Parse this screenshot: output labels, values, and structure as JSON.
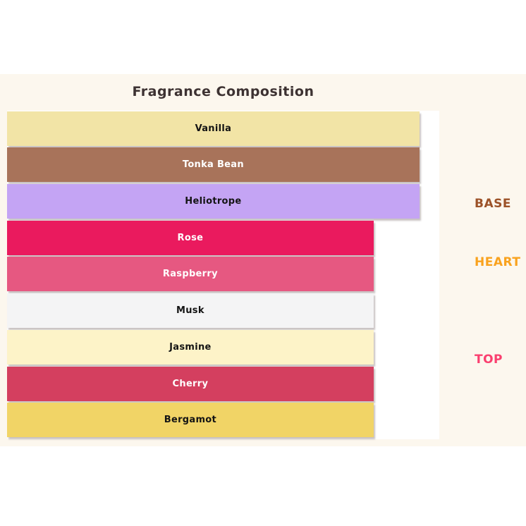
{
  "title": "Fragrance Composition",
  "colors": {
    "page_bg": "#ffffff",
    "figure_bg": "#fcf7ee",
    "plot_bg": "#ffffff",
    "title_color": "#3d3232",
    "bar_shadow": "rgba(60,40,40,0.28)"
  },
  "chart_data": {
    "type": "bar",
    "orientation": "horizontal",
    "title": "Fragrance Composition",
    "xlabel": "",
    "ylabel": "",
    "grid": false,
    "axis_ticks_visible": false,
    "units": "percent_of_plot_width",
    "xlim": [
      0,
      100
    ],
    "categories": [
      "Vanilla",
      "Tonka Bean",
      "Heliotrope",
      "Rose",
      "Raspberry",
      "Musk",
      "Jasmine",
      "Cherry",
      "Bergamot"
    ],
    "values": [
      95.4,
      95.4,
      95.4,
      84.8,
      84.8,
      84.8,
      84.8,
      84.8,
      84.8
    ],
    "bar_colors": [
      "#f2e4a6",
      "#a8735a",
      "#c4a4f4",
      "#ea1a5e",
      "#e65881",
      "#f4f4f5",
      "#fdf3c8",
      "#d43f5f",
      "#f1d466"
    ],
    "label_colors": [
      "#141414",
      "#ffffff",
      "#141414",
      "#ffffff",
      "#ffffff",
      "#141414",
      "#141414",
      "#ffffff",
      "#141414"
    ],
    "side_labels": [
      {
        "text": "BASE",
        "color": "#9c5228",
        "aligned_with": "Heliotrope"
      },
      {
        "text": "HEART",
        "color": "#f9a21d",
        "aligned_with": "Raspberry"
      },
      {
        "text": "TOP",
        "color": "#fa3f6f",
        "aligned_with": "Jasmine"
      }
    ],
    "legend": null
  }
}
